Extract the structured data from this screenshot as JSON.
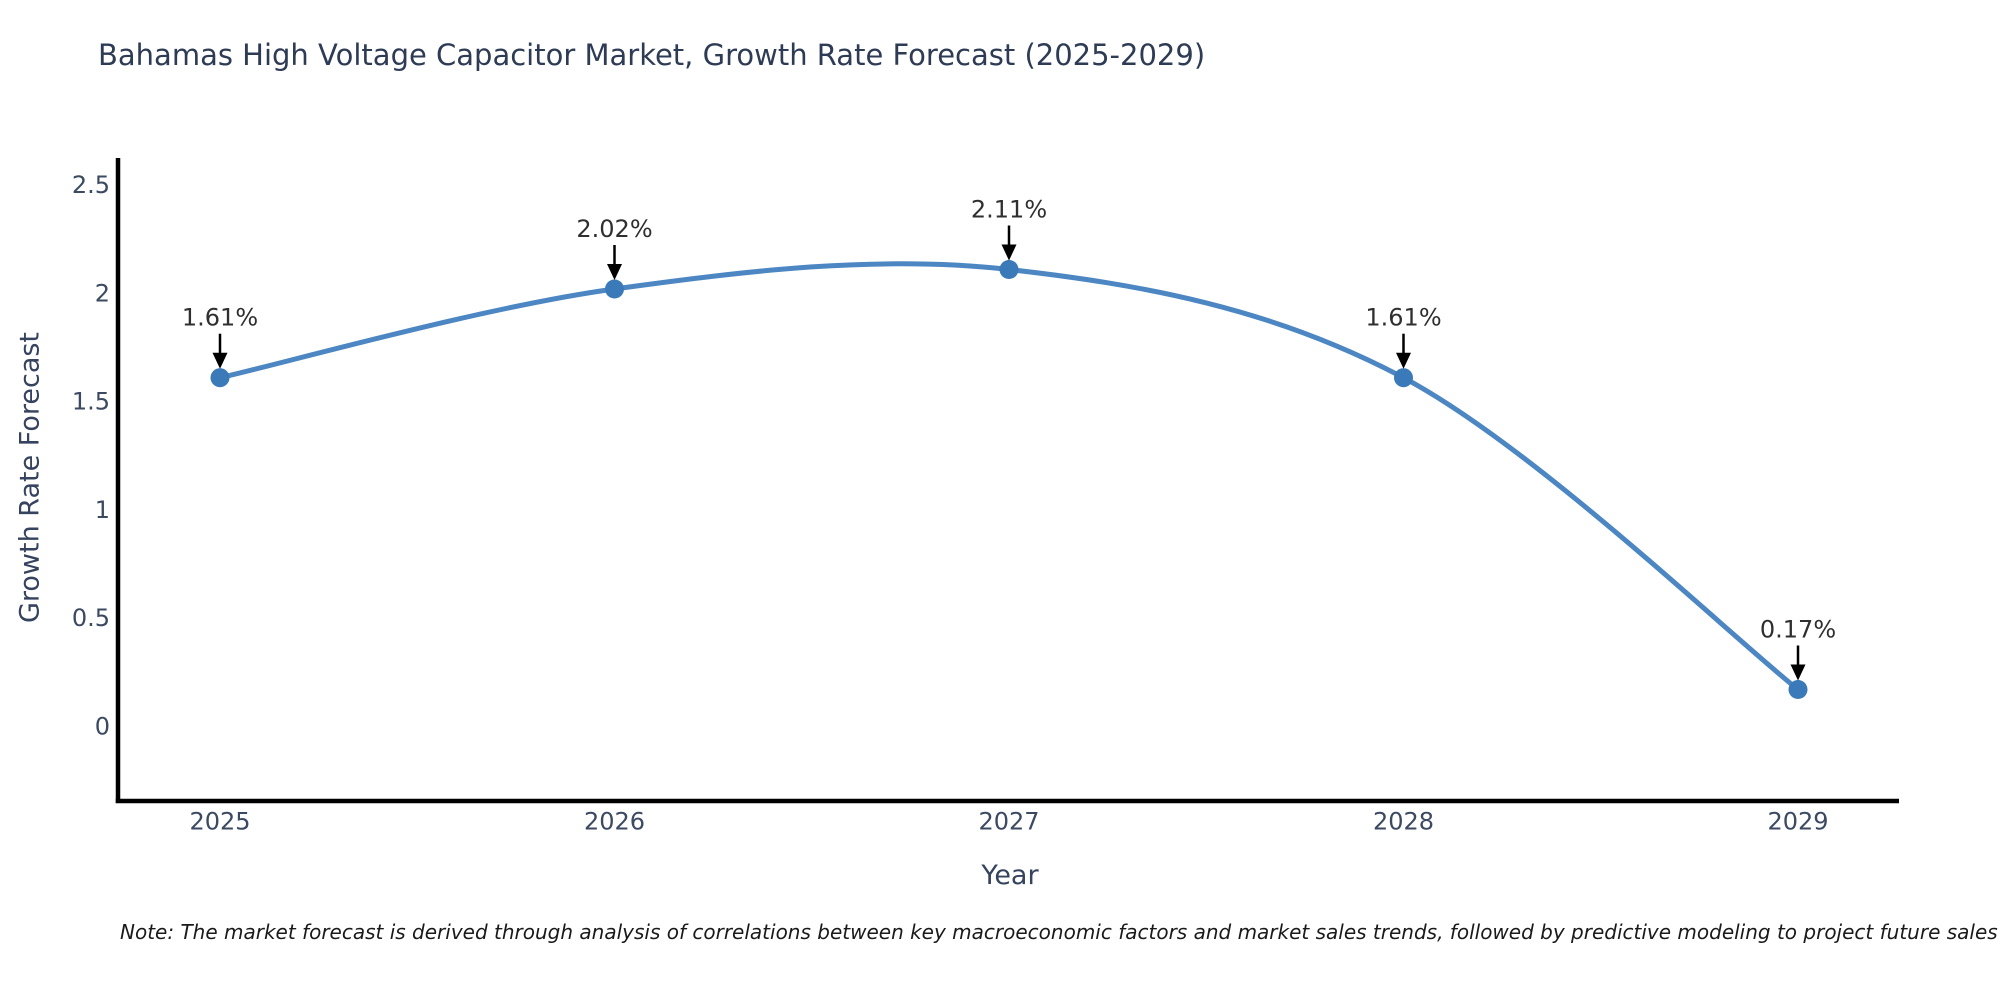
{
  "chart_data": {
    "type": "line",
    "title": "Bahamas High Voltage Capacitor Market, Growth Rate Forecast (2025-2029)",
    "xlabel": "Year",
    "ylabel": "Growth Rate Forecast",
    "categories": [
      "2025",
      "2026",
      "2027",
      "2028",
      "2029"
    ],
    "values": [
      1.61,
      2.02,
      2.11,
      1.61,
      0.17
    ],
    "point_labels": [
      "1.61%",
      "2.02%",
      "2.11%",
      "1.61%",
      "0.17%"
    ],
    "y_ticks": [
      "2.5",
      "2",
      "1.5",
      "1",
      "0.5",
      "0"
    ],
    "y_tick_values": [
      2.5,
      2.0,
      1.5,
      1.0,
      0.5,
      0.0
    ],
    "ylim": [
      -0.35,
      2.63
    ],
    "line_shape": "spline",
    "grid": false,
    "legend_position": "none",
    "note": "Note: The market forecast is derived through analysis of correlations between key macroeconomic factors and market sales trends, followed by predictive modeling to project future sales",
    "colors": {
      "line": "#4c87c3",
      "marker": "#3b7ab9",
      "axis": "#000000",
      "title_text": "#2e3b55",
      "axis_title_text": "#36435e",
      "tick_text": "#3b4961",
      "annotation_text": "#2f2f2f",
      "annotation_arrow": "#000000"
    }
  }
}
